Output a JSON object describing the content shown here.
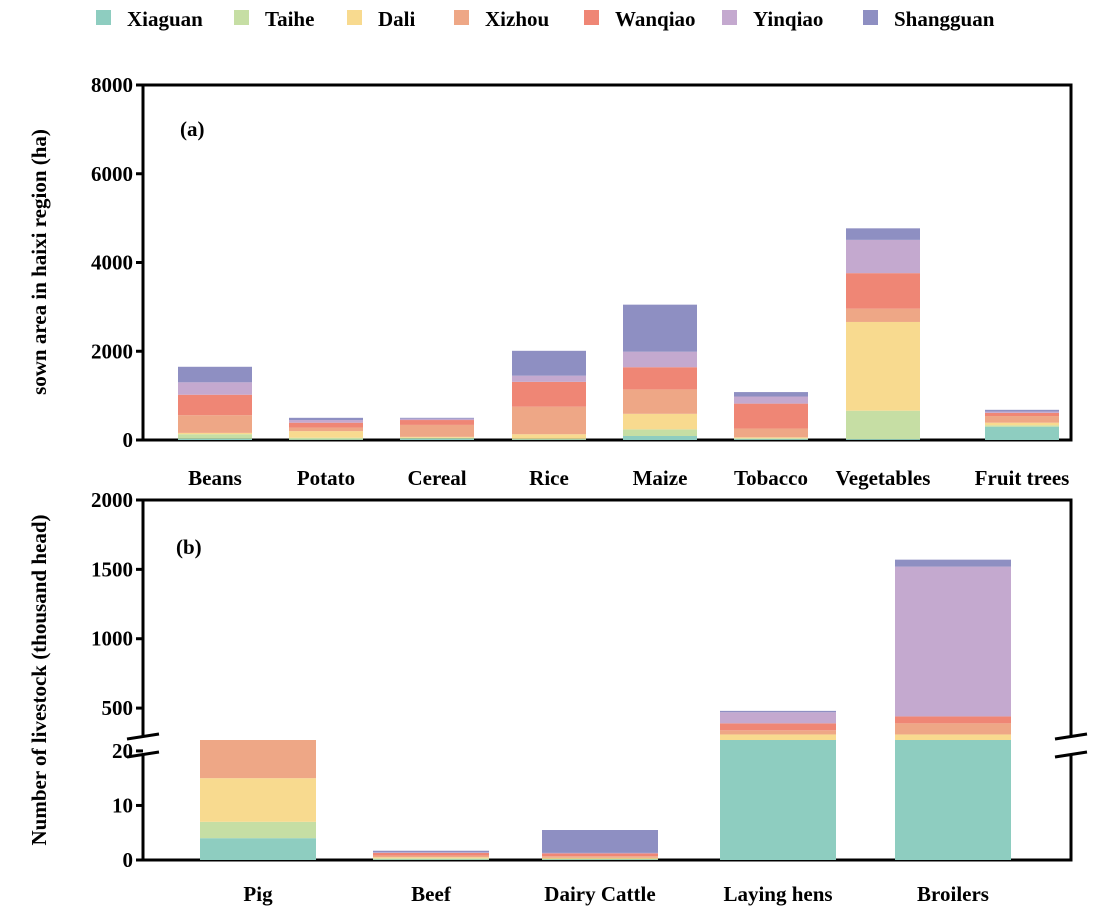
{
  "legend": [
    {
      "name": "Xiaguan",
      "color": "#8ecdc0"
    },
    {
      "name": "Taihe",
      "color": "#c6dea4"
    },
    {
      "name": "Dali",
      "color": "#f8da8f"
    },
    {
      "name": "Xizhou",
      "color": "#eea786"
    },
    {
      "name": "Wanqiao",
      "color": "#ef8675"
    },
    {
      "name": "Yinqiao",
      "color": "#c4a9cf"
    },
    {
      "name": "Shangguan",
      "color": "#8e8fc2"
    }
  ],
  "chart_data": [
    {
      "type": "bar",
      "stacked": true,
      "panel_label": "(a)",
      "ylabel": "sown area in haixi region (ha)",
      "xlabel": "",
      "ylim": [
        0,
        8000
      ],
      "yticks": [
        "0",
        "2000",
        "4000",
        "6000",
        "8000"
      ],
      "categories": [
        "Beans",
        "Potato",
        "Cereal",
        "Rice",
        "Maize",
        "Tobacco",
        "Vegetables",
        "Fruit trees"
      ],
      "series": [
        {
          "name": "Xiaguan",
          "values": [
            30,
            10,
            30,
            10,
            90,
            20,
            20,
            300
          ]
        },
        {
          "name": "Taihe",
          "values": [
            100,
            40,
            20,
            20,
            150,
            20,
            640,
            30
          ]
        },
        {
          "name": "Dali",
          "values": [
            30,
            150,
            20,
            100,
            350,
            20,
            2000,
            60
          ]
        },
        {
          "name": "Xizhou",
          "values": [
            400,
            80,
            270,
            620,
            550,
            200,
            300,
            150
          ]
        },
        {
          "name": "Wanqiao",
          "values": [
            460,
            110,
            110,
            560,
            500,
            560,
            800,
            70
          ]
        },
        {
          "name": "Yinqiao",
          "values": [
            280,
            60,
            30,
            140,
            350,
            160,
            750,
            30
          ]
        },
        {
          "name": "Shangguan",
          "values": [
            350,
            50,
            20,
            560,
            1060,
            100,
            260,
            40
          ]
        }
      ]
    },
    {
      "type": "bar",
      "stacked": true,
      "broken_axis": true,
      "panel_label": "(b)",
      "ylabel": "Number of livestock (thousand head)",
      "xlabel": "",
      "ylim_lower": [
        0,
        22
      ],
      "ylim_upper": [
        0,
        2000
      ],
      "yticks_lower": [
        "0",
        "10",
        "20"
      ],
      "yticks_upper": [
        "500",
        "1000",
        "1500",
        "2000"
      ],
      "categories": [
        "Pig",
        "Beef",
        "Dairy Cattle",
        "Laying hens",
        "Broilers"
      ],
      "series": [
        {
          "name": "Xiaguan",
          "values": [
            4,
            0.1,
            0.1,
            210,
            180
          ]
        },
        {
          "name": "Taihe",
          "values": [
            3,
            0.2,
            0.1,
            60,
            50
          ]
        },
        {
          "name": "Dali",
          "values": [
            8,
            0.2,
            0.2,
            40,
            80
          ]
        },
        {
          "name": "Xizhou",
          "values": [
            11,
            0.3,
            0.3,
            30,
            80
          ]
        },
        {
          "name": "Wanqiao",
          "values": [
            0.3,
            0.5,
            0.5,
            50,
            50
          ]
        },
        {
          "name": "Yinqiao",
          "values": [
            0.5,
            0.1,
            0.1,
            80,
            1080
          ]
        },
        {
          "name": "Shangguan",
          "values": [
            0.2,
            0.3,
            4.2,
            10,
            50
          ]
        }
      ]
    }
  ]
}
